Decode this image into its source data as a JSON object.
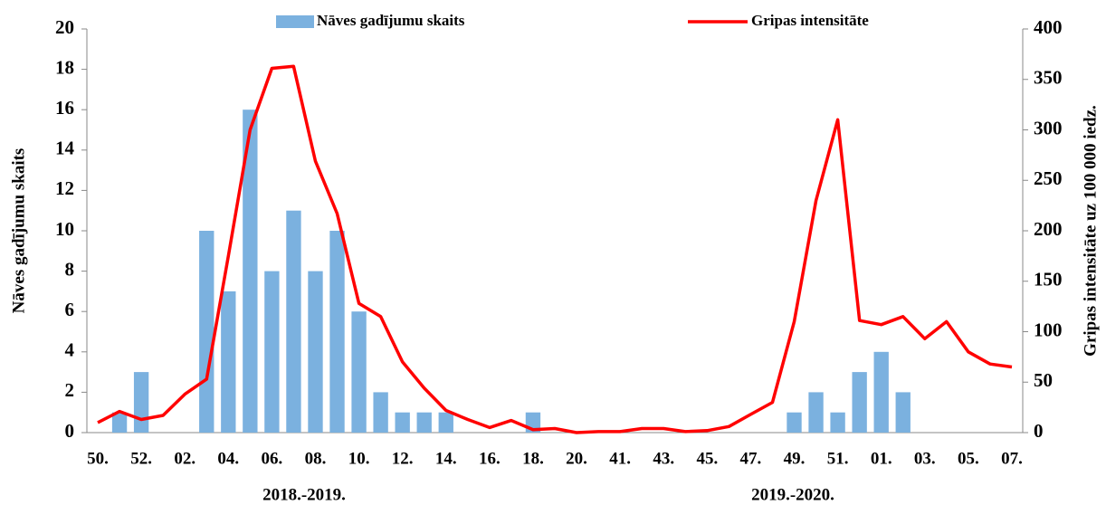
{
  "chart_data": {
    "type": "combo",
    "y_label": "Nāves gadījumu skaits",
    "y2_label": "Gripas intensitāte uz 100 000 iedz.",
    "categories": [
      "50.",
      null,
      "52.",
      null,
      "02.",
      null,
      "04.",
      null,
      "06.",
      null,
      "08.",
      null,
      "10.",
      null,
      "12.",
      null,
      "14.",
      null,
      "16.",
      null,
      "18.",
      null,
      "20.",
      null,
      "41.",
      null,
      "43.",
      null,
      "45.",
      null,
      "47.",
      null,
      "49.",
      null,
      "51.",
      null,
      "01.",
      null,
      "03.",
      null,
      "05.",
      null,
      "07."
    ],
    "series": [
      {
        "name": "Nāves gadījumu skaits",
        "type": "bar",
        "color": "#7bb1df",
        "values": [
          0,
          1,
          3,
          0,
          0,
          10,
          7,
          16,
          8,
          11,
          8,
          10,
          6,
          2,
          1,
          1,
          1,
          0,
          0,
          0,
          1,
          0,
          0,
          0,
          0,
          0,
          0,
          0,
          0,
          0,
          0,
          0,
          1,
          2,
          1,
          3,
          4,
          2,
          0,
          0,
          0,
          0,
          0
        ]
      },
      {
        "name": "Gripas intensitāte",
        "type": "line",
        "axis": "y2",
        "color": "#ff0000",
        "values": [
          10,
          21,
          13,
          17,
          38,
          53,
          175,
          300,
          361,
          363,
          269,
          217,
          128,
          115,
          70,
          44,
          22,
          13,
          5,
          12,
          3,
          4,
          0,
          1,
          1,
          4,
          4,
          1,
          2,
          6,
          18,
          30,
          110,
          230,
          310,
          111,
          107,
          115,
          93,
          110,
          80,
          68,
          65
        ]
      }
    ],
    "ylim": [
      0,
      20
    ],
    "yticks": [
      0,
      2,
      4,
      6,
      8,
      10,
      12,
      14,
      16,
      18,
      20
    ],
    "y2lim": [
      0,
      400
    ],
    "y2ticks": [
      0,
      50,
      100,
      150,
      200,
      250,
      300,
      350,
      400
    ],
    "annotations": [
      "2018.-2019.",
      "2019.-2020."
    ],
    "legend": "top"
  }
}
